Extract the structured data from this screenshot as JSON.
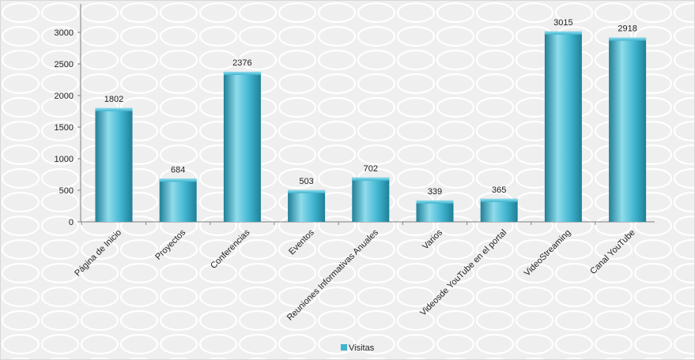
{
  "chart_data": {
    "type": "bar",
    "categories": [
      "Página de Inicio",
      "Proyectos",
      "Conferencias",
      "Eventos",
      "Reuniones Informativas Anuales",
      "Varios",
      "Videosde YouTube en el portal",
      "VideoStreaming",
      "Canal YouTube"
    ],
    "series": [
      {
        "name": "Visitas",
        "values": [
          1802,
          684,
          2376,
          503,
          702,
          339,
          365,
          3015,
          2918
        ]
      }
    ],
    "yticks": [
      "0",
      "500",
      "1000",
      "1500",
      "2000",
      "2500",
      "3000"
    ],
    "ylim": [
      0,
      3000
    ],
    "grid": false,
    "legend_position": "bottom",
    "bar_color": "#3fb4cf",
    "bar_color_dark": "#1f7f96",
    "bar_color_light": "#8fdcec"
  }
}
